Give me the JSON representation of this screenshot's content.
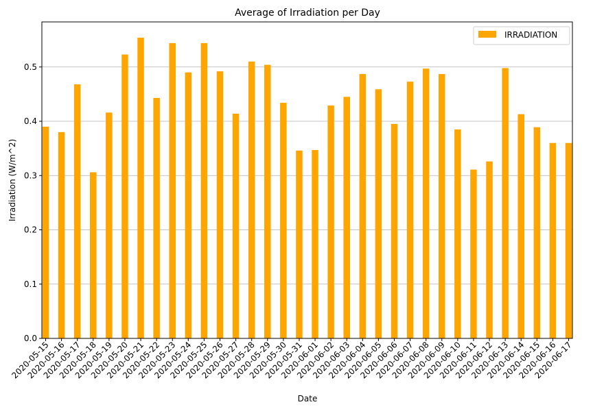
{
  "chart_data": {
    "type": "bar",
    "title": "Average of Irradiation per Day",
    "xlabel": "Date",
    "ylabel": "Irradiation (W/m^2)",
    "ylim": [
      0,
      0.583
    ],
    "yticks": [
      "0.0",
      "0.1",
      "0.2",
      "0.3",
      "0.4",
      "0.5"
    ],
    "grid": "y",
    "legend_position": "top-right",
    "categories": [
      "2020-05-15",
      "2020-05-16",
      "2020-05-17",
      "2020-05-18",
      "2020-05-19",
      "2020-05-20",
      "2020-05-21",
      "2020-05-22",
      "2020-05-23",
      "2020-05-24",
      "2020-05-25",
      "2020-05-26",
      "2020-05-27",
      "2020-05-28",
      "2020-05-29",
      "2020-05-30",
      "2020-05-31",
      "2020-06-01",
      "2020-06-02",
      "2020-06-03",
      "2020-06-04",
      "2020-06-05",
      "2020-06-06",
      "2020-06-07",
      "2020-06-08",
      "2020-06-09",
      "2020-06-10",
      "2020-06-11",
      "2020-06-12",
      "2020-06-13",
      "2020-06-14",
      "2020-06-15",
      "2020-06-16",
      "2020-06-17"
    ],
    "series": [
      {
        "name": "IRRADIATION",
        "color": "#ffa500",
        "values": [
          0.39,
          0.38,
          0.468,
          0.306,
          0.416,
          0.523,
          0.554,
          0.443,
          0.544,
          0.49,
          0.544,
          0.492,
          0.414,
          0.51,
          0.504,
          0.434,
          0.346,
          0.347,
          0.429,
          0.445,
          0.487,
          0.459,
          0.395,
          0.473,
          0.497,
          0.487,
          0.385,
          0.311,
          0.326,
          0.498,
          0.413,
          0.389,
          0.36,
          0.36
        ]
      }
    ]
  }
}
